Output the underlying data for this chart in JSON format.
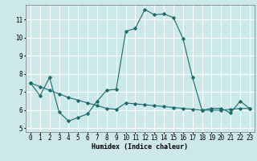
{
  "title": "",
  "xlabel": "Humidex (Indice chaleur)",
  "ylabel": "",
  "bg_color": "#cce8e8",
  "grid_color": "#ffffff",
  "line_color": "#1a6b6b",
  "x_line1": [
    0,
    1,
    2,
    3,
    4,
    5,
    6,
    7,
    8,
    9,
    10,
    11,
    12,
    13,
    14,
    15,
    16,
    17,
    18,
    19,
    20,
    21,
    22,
    23
  ],
  "y_line1": [
    7.5,
    6.8,
    7.8,
    5.9,
    5.4,
    5.6,
    5.8,
    6.5,
    7.1,
    7.15,
    10.35,
    10.5,
    11.55,
    11.25,
    11.3,
    11.1,
    9.95,
    7.8,
    6.0,
    6.1,
    6.1,
    5.85,
    6.5,
    6.1
  ],
  "x_line2": [
    0,
    1,
    2,
    3,
    4,
    5,
    6,
    7,
    8,
    9,
    10,
    11,
    12,
    13,
    14,
    15,
    16,
    17,
    18,
    19,
    20,
    21,
    22,
    23
  ],
  "y_line2": [
    7.5,
    7.3,
    7.1,
    6.9,
    6.7,
    6.55,
    6.4,
    6.25,
    6.1,
    6.05,
    6.4,
    6.35,
    6.3,
    6.25,
    6.2,
    6.15,
    6.1,
    6.05,
    6.0,
    6.0,
    6.0,
    6.05,
    6.1,
    6.1
  ],
  "xlim": [
    -0.5,
    23.5
  ],
  "ylim": [
    4.8,
    11.8
  ],
  "yticks": [
    5,
    6,
    7,
    8,
    9,
    10,
    11
  ],
  "xticks": [
    0,
    1,
    2,
    3,
    4,
    5,
    6,
    7,
    8,
    9,
    10,
    11,
    12,
    13,
    14,
    15,
    16,
    17,
    18,
    19,
    20,
    21,
    22,
    23
  ],
  "fontsize_label": 6,
  "fontsize_tick": 5.5
}
